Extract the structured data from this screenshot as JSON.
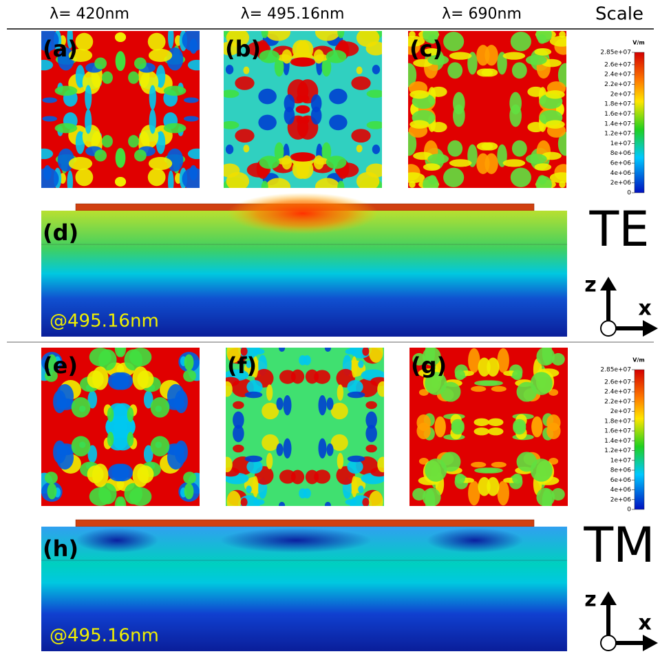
{
  "header": {
    "columns": [
      "λ= 420nm",
      "λ= 495.16nm",
      "λ= 690nm"
    ],
    "scale": "Scale"
  },
  "rows": [
    {
      "panels": [
        "(a)",
        "(b)",
        "(c)"
      ],
      "side_panel": "(d)",
      "wavelength": "@495.16nm",
      "mode": "TE",
      "axes": {
        "z": "z",
        "x": "x"
      },
      "colorbar": {
        "unit": "V/m",
        "ticks": [
          "2.85e+07",
          "2.6e+07",
          "2.4e+07",
          "2.2e+07",
          "2e+07",
          "1.8e+07",
          "1.6e+07",
          "1.4e+07",
          "1.2e+07",
          "1e+07",
          "8e+06",
          "6e+06",
          "4e+06",
          "2e+06",
          "0"
        ]
      }
    },
    {
      "panels": [
        "(e)",
        "(f)",
        "(g)"
      ],
      "side_panel": "(h)",
      "wavelength": "@495.16nm",
      "mode": "TM",
      "axes": {
        "z": "z",
        "x": "x"
      },
      "colorbar": {
        "unit": "V/m",
        "ticks": [
          "2.85e+07",
          "2.6e+07",
          "2.4e+07",
          "2.2e+07",
          "2e+07",
          "1.8e+07",
          "1.6e+07",
          "1.4e+07",
          "1.2e+07",
          "1e+07",
          "8e+06",
          "6e+06",
          "4e+06",
          "2e+06",
          "0"
        ]
      }
    }
  ]
}
